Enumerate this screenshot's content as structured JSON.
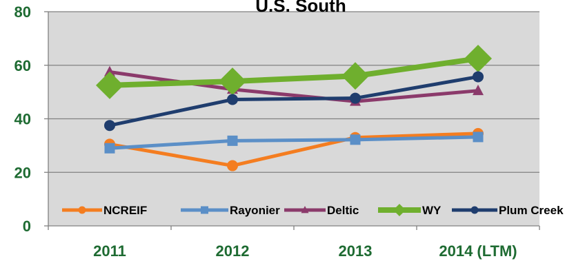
{
  "chart_data": {
    "type": "line",
    "title": "U.S. South",
    "xlabel": "",
    "ylabel": "",
    "categories": [
      "2011",
      "2012",
      "2013",
      "2014 (LTM)"
    ],
    "yticks": [
      "0",
      "20",
      "40",
      "60",
      "80"
    ],
    "ylim": [
      0,
      80
    ],
    "grid": true,
    "legend_position": "bottom",
    "tick_color": "#1e6b32",
    "plot_background": "#d9d9d9",
    "series": [
      {
        "name": "NCREIF",
        "values": [
          30.5,
          22.5,
          33,
          34.5
        ],
        "color": "#f47d20",
        "marker": "circle"
      },
      {
        "name": "Rayonier",
        "values": [
          29,
          31.8,
          32.2,
          33.2
        ],
        "color": "#5b8fc7",
        "marker": "square"
      },
      {
        "name": "Deltic",
        "values": [
          57.5,
          51,
          46.5,
          50.5
        ],
        "color": "#8b3a6b",
        "marker": "triangle"
      },
      {
        "name": "WY",
        "values": [
          52.5,
          54,
          56,
          62.5
        ],
        "color": "#6faf2e",
        "marker": "diamond"
      },
      {
        "name": "Plum Creek",
        "values": [
          37.5,
          47.2,
          47.7,
          55.7
        ],
        "color": "#1f3d6e",
        "marker": "circle"
      }
    ]
  }
}
